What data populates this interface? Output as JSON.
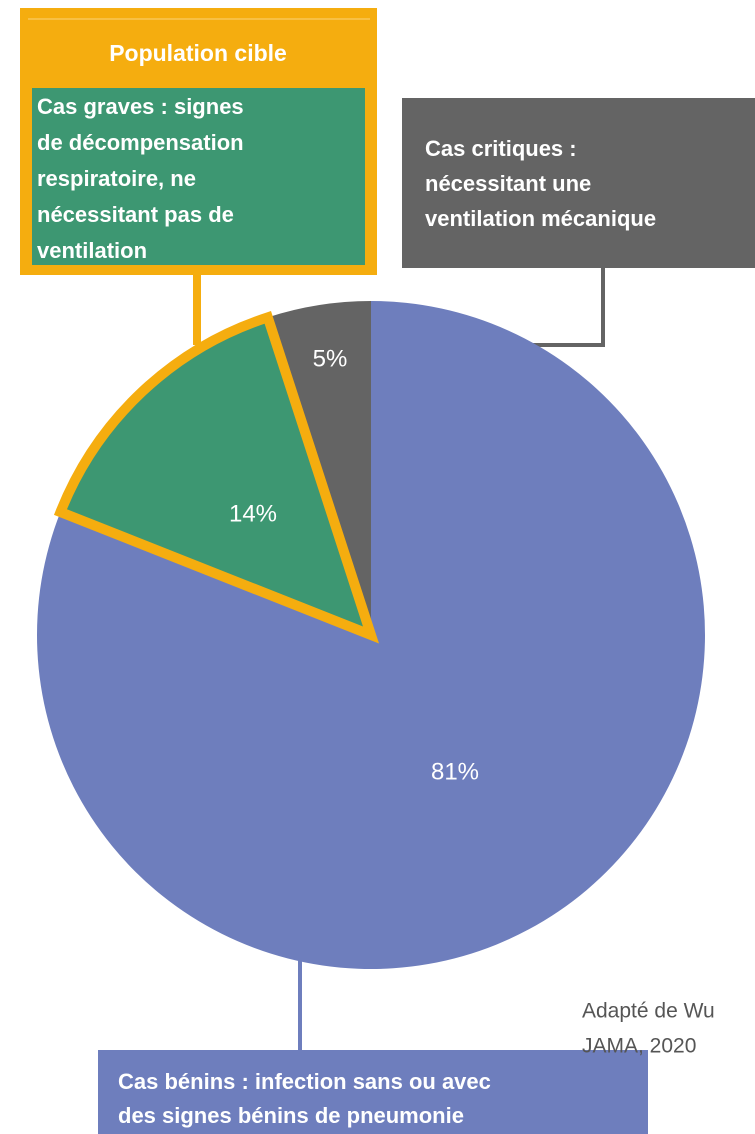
{
  "chart_data": {
    "type": "pie",
    "title": "Population cible",
    "categories": [
      [
        "Cas bénins : infection sans ou avec",
        "des signes bénins de pneumonie"
      ],
      [
        "Cas graves : signes",
        "de décompensation",
        "respiratoire, ne",
        "nécessitant pas de",
        "ventilation"
      ],
      [
        "Cas critiques :",
        "nécessitant une",
        "ventilation mécanique"
      ]
    ],
    "values": [
      81,
      14,
      5
    ],
    "value_labels": [
      "81%",
      "14%",
      "5%"
    ],
    "colors": [
      "#6e7ebd",
      "#3d9772",
      "#646464"
    ],
    "highlight_color": "#f5ad0f",
    "source": [
      "Adapté de Wu",
      "JAMA, 2020"
    ]
  }
}
